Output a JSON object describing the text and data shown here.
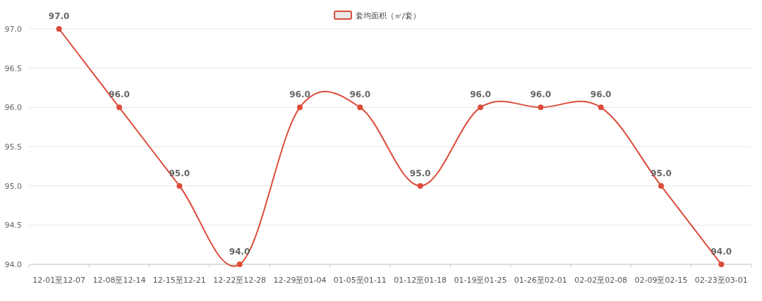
{
  "chart_data": {
    "type": "line",
    "categories": [
      "12-01至12-07",
      "12-08至12-14",
      "12-15至12-21",
      "12-22至12-28",
      "12-29至01-04",
      "01-05至01-11",
      "01-12至01-18",
      "01-19至01-25",
      "01-26至02-01",
      "02-02至02-08",
      "02-09至02-15",
      "02-23至03-01"
    ],
    "series": [
      {
        "name": "套均面积（㎡/套）",
        "color": "#dd4b39",
        "values": [
          97,
          96,
          95,
          94,
          96,
          96,
          95,
          96,
          96,
          96,
          95,
          94
        ],
        "value_labels": [
          "97.0",
          "96.0",
          "95.0",
          "94.0",
          "96.0",
          "96.0",
          "95.0",
          "96.0",
          "96.0",
          "96.0",
          "95.0",
          "94.0"
        ]
      }
    ],
    "ylim": [
      94,
      97
    ],
    "yticks": [
      {
        "value": 94,
        "label": "94.0"
      },
      {
        "value": 94.5,
        "label": "94.5"
      },
      {
        "value": 95,
        "label": "95.0"
      },
      {
        "value": 95.5,
        "label": "95.5"
      },
      {
        "value": 96,
        "label": "96.0"
      },
      {
        "value": 96.5,
        "label": "96.5"
      },
      {
        "value": 97,
        "label": "97.0"
      }
    ],
    "grid": "y",
    "legend": "top",
    "marker": "circle"
  }
}
